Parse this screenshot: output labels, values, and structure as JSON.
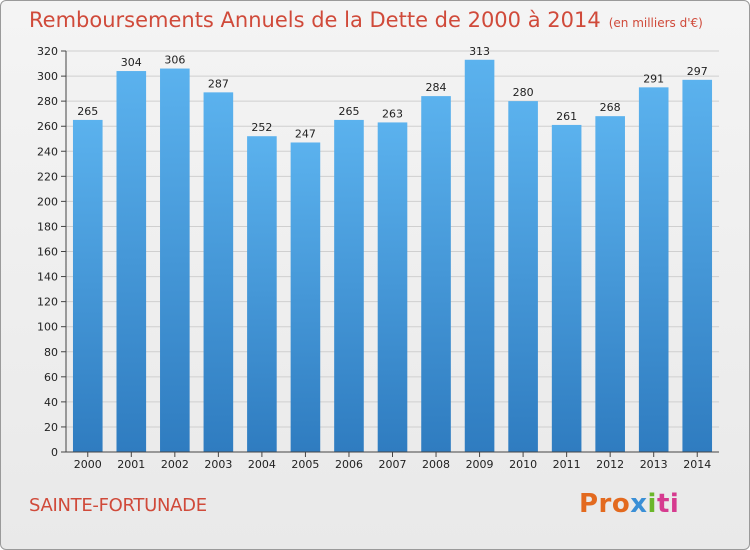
{
  "chart_data": {
    "type": "bar",
    "title": "Remboursements Annuels de la Dette de 2000 à 2014",
    "unit_note": "(en milliers d'€)",
    "categories": [
      "2000",
      "2001",
      "2002",
      "2003",
      "2004",
      "2005",
      "2006",
      "2007",
      "2008",
      "2009",
      "2010",
      "2011",
      "2012",
      "2013",
      "2014"
    ],
    "values": [
      265,
      304,
      306,
      287,
      252,
      247,
      265,
      263,
      284,
      313,
      280,
      261,
      268,
      291,
      297
    ],
    "ylim": [
      0,
      320
    ],
    "ytick_step": 20,
    "xlabel": "",
    "ylabel": "",
    "grid": true,
    "bar_color": "#4a9fe0"
  },
  "footer": {
    "city": "SAINTE-FORTUNADE",
    "logo_parts": [
      "Pro",
      "x",
      "i",
      "ti"
    ]
  }
}
